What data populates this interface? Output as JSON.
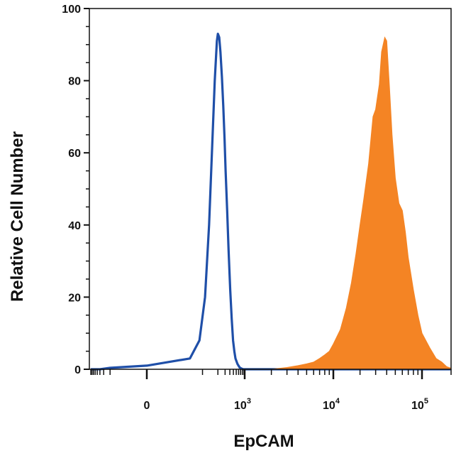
{
  "chart_data": {
    "type": "area",
    "title": "",
    "xlabel": "EpCAM",
    "ylabel": "Relative Cell Number",
    "x_scale": "biexponential",
    "xlim": [
      -400,
      200000
    ],
    "ylim": [
      0,
      100
    ],
    "grid": false,
    "legend": "none",
    "y_ticks": [
      {
        "value": 0,
        "label": "0"
      },
      {
        "value": 20,
        "label": "20"
      },
      {
        "value": 40,
        "label": "40"
      },
      {
        "value": 60,
        "label": "60"
      },
      {
        "value": 80,
        "label": "80"
      },
      {
        "value": 100,
        "label": "100"
      }
    ],
    "x_ticks": [
      {
        "value": 0,
        "base": "0",
        "exp": ""
      },
      {
        "value": 1000,
        "base": "10",
        "exp": "3"
      },
      {
        "value": 10000,
        "base": "10",
        "exp": "4"
      },
      {
        "value": 100000,
        "base": "10",
        "exp": "5"
      }
    ],
    "series": [
      {
        "style": "outline",
        "color": "#1f4fa8",
        "x": [
          -400,
          -150,
          -50,
          0,
          20,
          40,
          60,
          80,
          100,
          120,
          140,
          150,
          165,
          180,
          200,
          220,
          240,
          260,
          290,
          320,
          360,
          400,
          440,
          480,
          520,
          600,
          700,
          800,
          900,
          1000,
          2000,
          10000,
          200000
        ],
        "y": [
          0,
          0,
          0.4,
          1,
          3,
          8,
          20,
          40,
          62,
          80,
          91,
          93,
          92,
          88,
          81,
          73,
          64,
          55,
          44,
          33,
          22,
          14,
          8,
          5,
          3,
          1.5,
          0.5,
          0.2,
          0,
          0,
          0,
          0,
          0
        ]
      },
      {
        "style": "filled",
        "color": "#f48424",
        "x": [
          -400,
          2000,
          3000,
          4000,
          5000,
          6000,
          7000,
          8000,
          9000,
          10000,
          12000,
          14000,
          16000,
          18000,
          20000,
          22000,
          25000,
          28000,
          30000,
          33000,
          35000,
          38000,
          40000,
          43000,
          46000,
          50000,
          55000,
          60000,
          65000,
          70000,
          80000,
          90000,
          100000,
          120000,
          140000,
          160000,
          180000,
          200000
        ],
        "y": [
          0,
          0,
          0.5,
          1,
          1.5,
          2,
          3,
          4,
          5,
          7,
          11,
          17,
          24,
          32,
          40,
          47,
          57,
          70,
          72,
          79,
          88,
          92,
          91,
          78,
          65,
          53,
          46,
          44,
          38,
          31,
          22,
          15,
          10,
          6,
          3,
          2,
          0.7,
          0.3
        ]
      }
    ]
  }
}
